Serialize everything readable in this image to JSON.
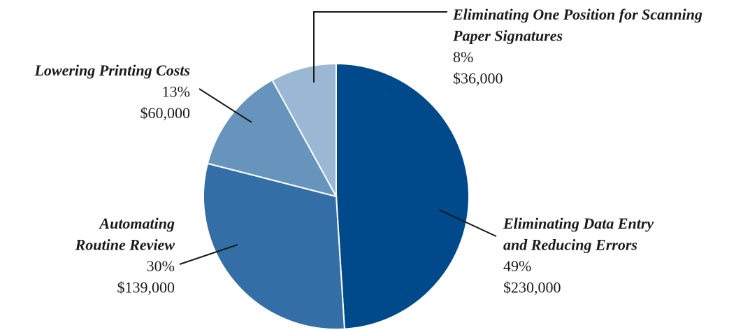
{
  "chart_data": {
    "type": "pie",
    "categories": [
      [
        "Eliminating Data Entry",
        "and Reducing Errors"
      ],
      [
        "Automating",
        "Routine Review"
      ],
      [
        "Lowering Printing Costs"
      ],
      [
        "Eliminating One Position for Scanning",
        "Paper Signatures"
      ]
    ],
    "values": [
      49,
      30,
      13,
      8
    ],
    "value_labels": [
      "49%",
      "30%",
      "13%",
      "8%"
    ],
    "amounts": [
      "$230,000",
      "$139,000",
      "$60,000",
      "$36,000"
    ],
    "colors": [
      "#004a8c",
      "#336fa6",
      "#6794bd",
      "#9ab7d4"
    ],
    "start_angle": 0,
    "direction": "clockwise"
  }
}
